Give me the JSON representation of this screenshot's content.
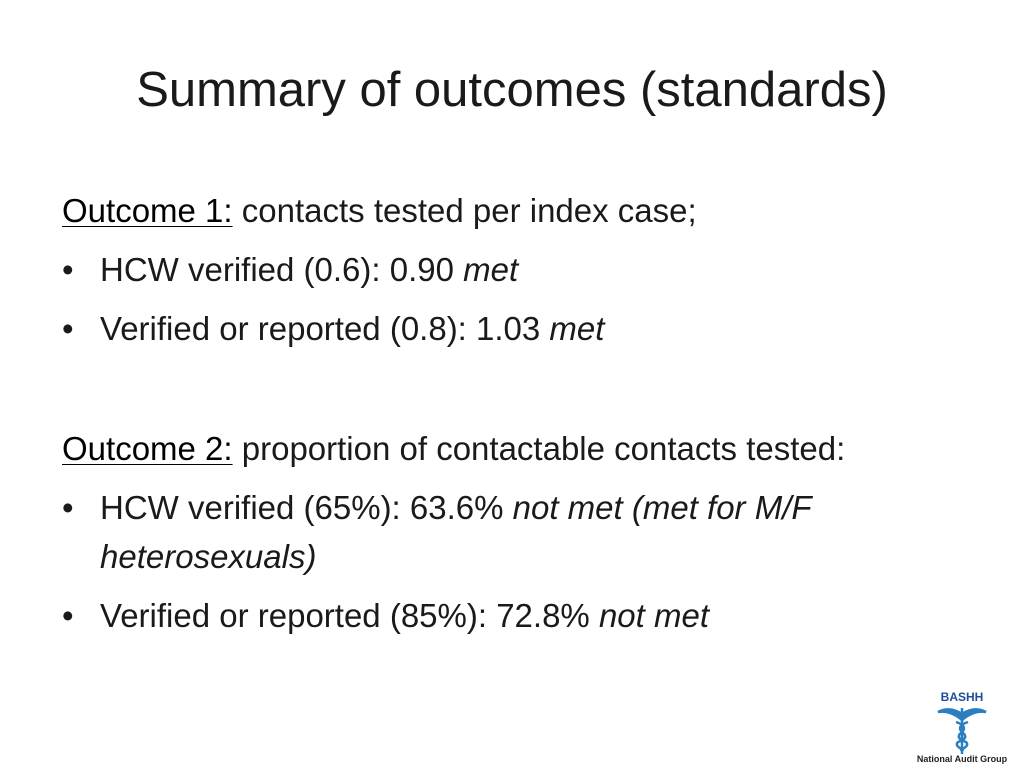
{
  "title": "Summary of outcomes (standards)",
  "outcomes": [
    {
      "label": "Outcome 1:",
      "text": "contacts tested per index case;",
      "bullets": [
        {
          "text": "HCW verified (0.6): 0.90",
          "status": "met"
        },
        {
          "text": "Verified or reported (0.8): 1.03",
          "status": "met"
        }
      ]
    },
    {
      "label": "Outcome 2:",
      "text": "proportion of contactable contacts tested:",
      "bullets": [
        {
          "text": "HCW verified (65%): 63.6%",
          "status": "not met (met for M/F heterosexuals)"
        },
        {
          "text": "Verified or reported (85%): 72.8%",
          "status": "not met"
        }
      ]
    }
  ],
  "logo": {
    "name": "BASHH",
    "caption": "National Audit Group"
  }
}
